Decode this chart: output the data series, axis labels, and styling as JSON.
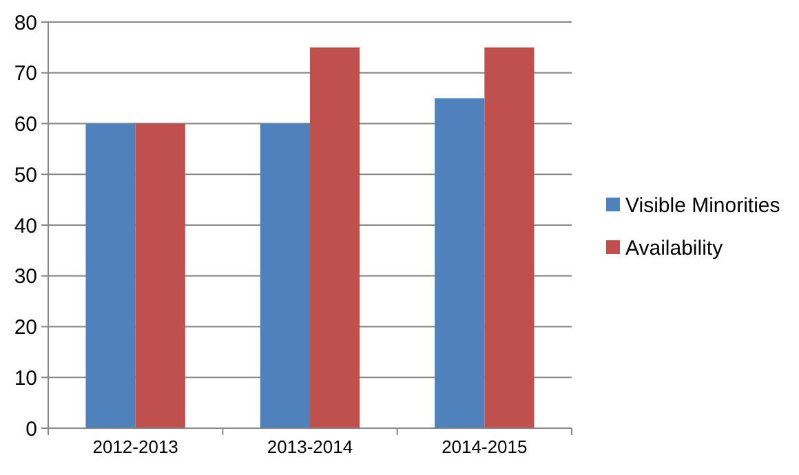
{
  "chart_data": {
    "type": "bar",
    "categories": [
      "2012-2013",
      "2013-2014",
      "2014-2015"
    ],
    "series": [
      {
        "name": "Visible Minorities",
        "color": "#4f81bd",
        "values": [
          60,
          60,
          65
        ]
      },
      {
        "name": "Availability",
        "color": "#c0504d",
        "values": [
          60,
          75,
          75
        ]
      }
    ],
    "ylim": [
      0,
      80
    ],
    "yticks": [
      0,
      10,
      20,
      30,
      40,
      50,
      60,
      70,
      80
    ],
    "grid": "y",
    "legend": "right"
  }
}
